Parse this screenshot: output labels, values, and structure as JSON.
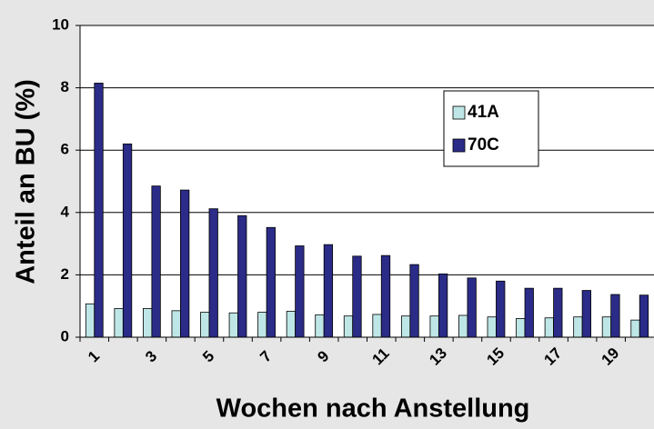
{
  "chart_data": {
    "type": "bar",
    "ylabel": "Anteil an BU (%)",
    "xlabel": "Wochen nach Anstellung",
    "categories": [
      "1",
      null,
      "3",
      null,
      "5",
      null,
      "7",
      null,
      "9",
      null,
      "11",
      null,
      "13",
      null,
      "15",
      null,
      "17",
      null,
      "19",
      null
    ],
    "series": [
      {
        "name": "41A",
        "color": "#bfe6e6",
        "values": [
          1.07,
          0.92,
          0.92,
          0.85,
          0.8,
          0.78,
          0.8,
          0.83,
          0.72,
          0.68,
          0.73,
          0.68,
          0.68,
          0.7,
          0.65,
          0.6,
          0.62,
          0.65,
          0.65,
          0.55
        ]
      },
      {
        "name": "70C",
        "color": "#2b2b88",
        "values": [
          8.15,
          6.2,
          4.85,
          4.72,
          4.12,
          3.9,
          3.52,
          2.93,
          2.97,
          2.6,
          2.62,
          2.33,
          2.03,
          1.9,
          1.8,
          1.57,
          1.57,
          1.5,
          1.37,
          1.35
        ]
      }
    ],
    "ylim": [
      0,
      10
    ],
    "yticks": [
      0,
      2,
      4,
      6,
      8,
      10
    ],
    "grid": true,
    "legend": "upper right"
  }
}
